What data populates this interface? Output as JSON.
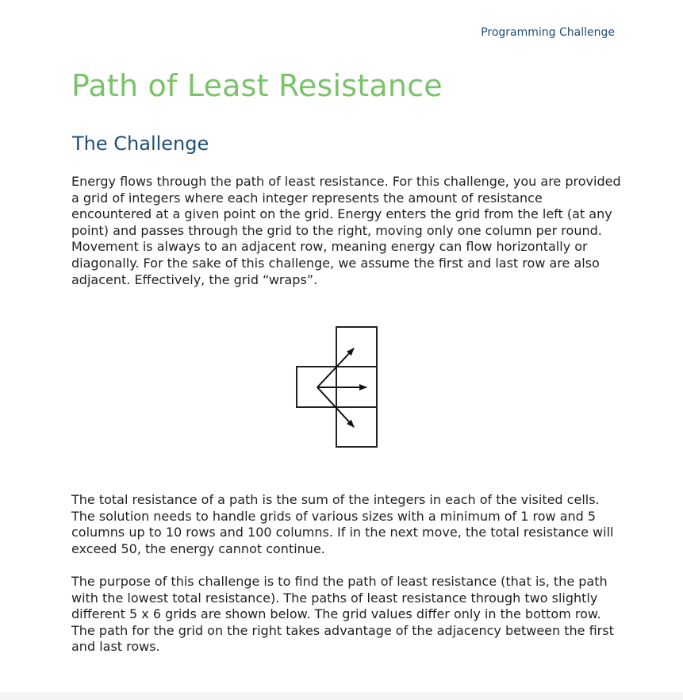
{
  "header": {
    "label": "Programming Challenge"
  },
  "title": "Path of Least Resistance",
  "section": {
    "heading": "The Challenge"
  },
  "paragraphs": [
    "Energy flows through the path of least resistance. For this challenge, you are provided a grid of integers where each integer represents the amount of resistance encountered at a given point on the grid. Energy enters the grid from the left (at any point) and passes through the grid to the right, moving only one column per round. Movement is always to an adjacent row, meaning energy can flow horizontally or diagonally. For the sake of this challenge, we assume the first and last row are also adjacent. Effectively, the grid “wraps”.",
    "The total resistance of a path is the sum of the integers in each of the visited cells. The solution needs to handle grids of various sizes with a minimum of 1 row and 5 columns up to 10 rows and 100 columns. If in the next move, the total resistance will exceed 50, the energy cannot continue.",
    "The purpose of this challenge is to find the path of least resistance (that is, the path with the lowest total resistance). The paths of least resistance through two slightly different 5 x 6 grids are shown below. The grid values differ only in the bottom row. The path for the grid on the right takes advantage of the adjacency between the first and last rows."
  ]
}
